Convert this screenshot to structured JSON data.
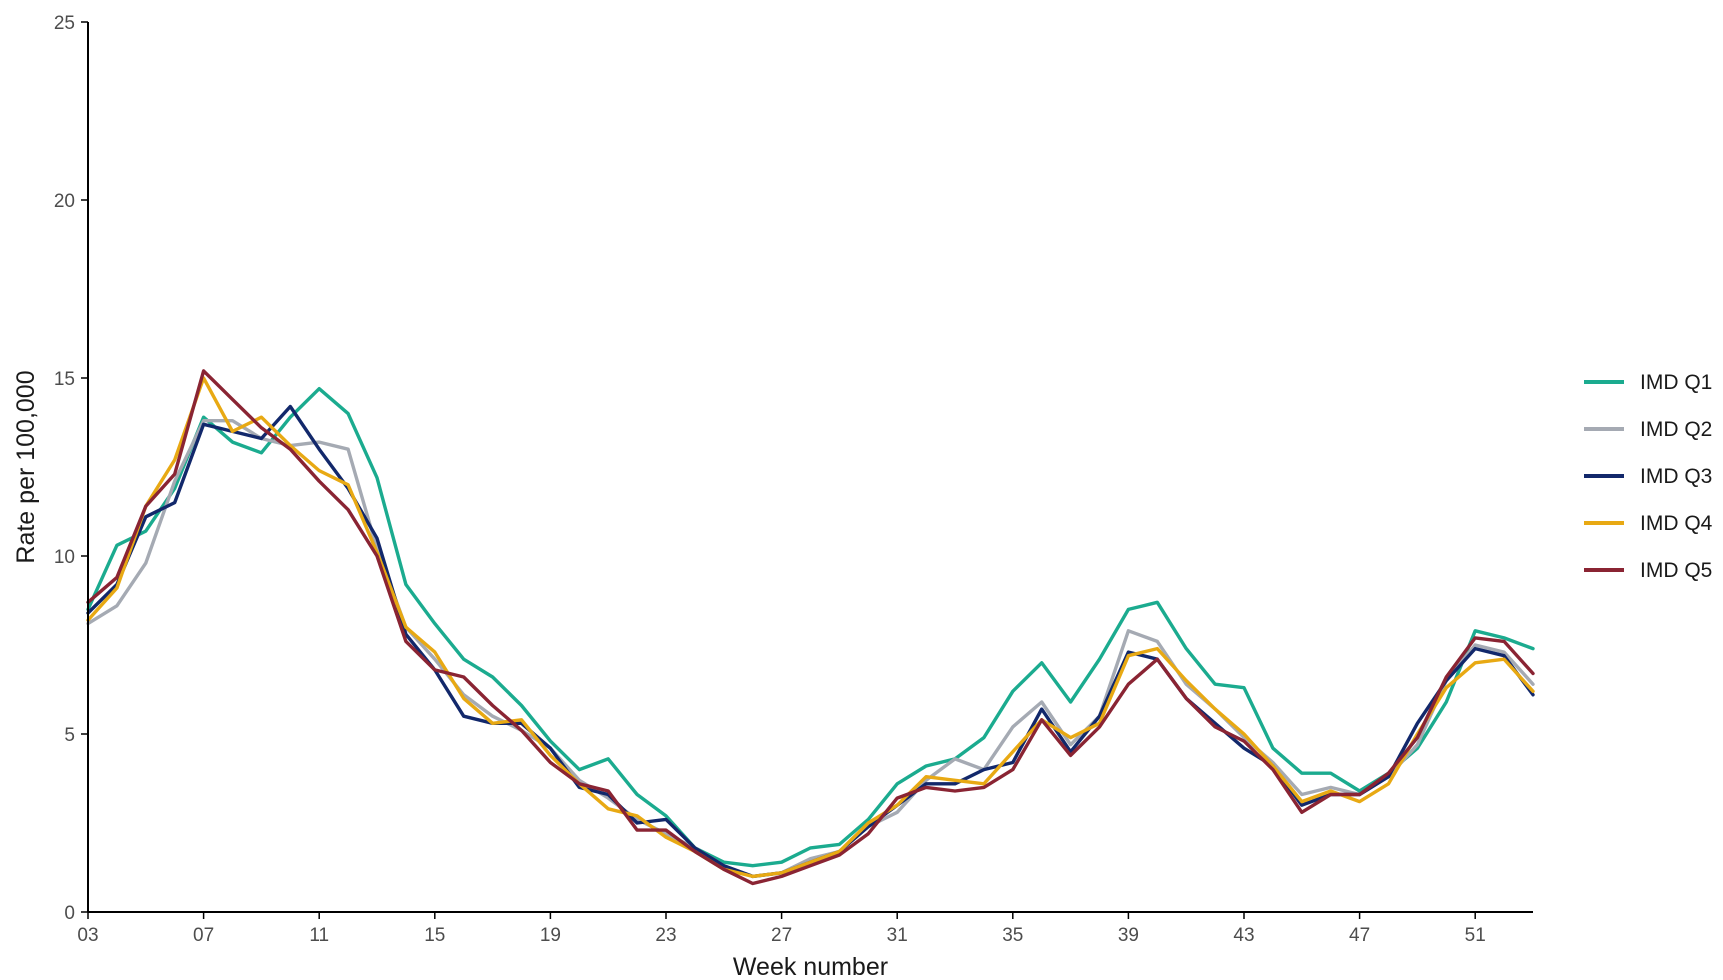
{
  "chart_data": {
    "type": "line",
    "title": "",
    "xlabel": "Week number",
    "ylabel": "Rate per 100,000",
    "xlim": [
      3,
      53
    ],
    "ylim": [
      0,
      25
    ],
    "x_ticks": [
      "03",
      "07",
      "11",
      "15",
      "19",
      "23",
      "27",
      "31",
      "35",
      "39",
      "43",
      "47",
      "51"
    ],
    "x_tick_values": [
      3,
      7,
      11,
      15,
      19,
      23,
      27,
      31,
      35,
      39,
      43,
      47,
      51
    ],
    "y_ticks": [
      "0",
      "5",
      "10",
      "15",
      "20",
      "25"
    ],
    "y_tick_values": [
      0,
      5,
      10,
      15,
      20,
      25
    ],
    "grid": false,
    "legend_position": "right",
    "x": [
      3,
      4,
      5,
      6,
      7,
      8,
      9,
      10,
      11,
      12,
      13,
      14,
      15,
      16,
      17,
      18,
      19,
      20,
      21,
      22,
      23,
      24,
      25,
      26,
      27,
      28,
      29,
      30,
      31,
      32,
      33,
      34,
      35,
      36,
      37,
      38,
      39,
      40,
      41,
      42,
      43,
      44,
      45,
      46,
      47,
      48,
      49,
      50,
      51,
      52,
      53
    ],
    "series": [
      {
        "name": "IMD Q1",
        "color": "#1bab8f",
        "values": [
          8.5,
          10.3,
          10.7,
          11.9,
          13.9,
          13.2,
          12.9,
          13.9,
          14.7,
          14.0,
          12.2,
          9.2,
          8.1,
          7.1,
          6.6,
          5.8,
          4.8,
          4.0,
          4.3,
          3.3,
          2.7,
          1.8,
          1.4,
          1.3,
          1.4,
          1.8,
          1.9,
          2.6,
          3.6,
          4.1,
          4.3,
          4.9,
          6.2,
          7.0,
          5.9,
          7.1,
          8.5,
          8.7,
          7.4,
          6.4,
          6.3,
          4.6,
          3.9,
          3.9,
          3.4,
          3.9,
          4.6,
          5.9,
          7.9,
          7.7,
          7.4
        ]
      },
      {
        "name": "IMD Q2",
        "color": "#a5aab3",
        "values": [
          8.1,
          8.6,
          9.8,
          12.1,
          13.8,
          13.8,
          13.3,
          13.1,
          13.2,
          13.0,
          10.2,
          8.0,
          7.1,
          6.1,
          5.5,
          5.1,
          4.6,
          3.7,
          3.2,
          2.6,
          2.2,
          1.8,
          1.3,
          1.0,
          1.1,
          1.5,
          1.7,
          2.4,
          2.8,
          3.7,
          4.3,
          4.0,
          5.2,
          5.9,
          4.7,
          5.5,
          7.9,
          7.6,
          6.4,
          5.7,
          4.9,
          4.2,
          3.3,
          3.5,
          3.3,
          3.8,
          4.7,
          6.5,
          7.5,
          7.3,
          6.4
        ]
      },
      {
        "name": "IMD Q3",
        "color": "#12286b",
        "values": [
          8.4,
          9.2,
          11.1,
          11.5,
          13.7,
          13.5,
          13.3,
          14.2,
          13.0,
          11.9,
          10.5,
          7.8,
          6.8,
          5.5,
          5.3,
          5.3,
          4.6,
          3.5,
          3.3,
          2.5,
          2.6,
          1.8,
          1.3,
          1.0,
          1.1,
          1.4,
          1.7,
          2.4,
          3.0,
          3.6,
          3.6,
          4.0,
          4.2,
          5.7,
          4.5,
          5.5,
          7.3,
          7.1,
          6.0,
          5.3,
          4.6,
          4.1,
          3.0,
          3.3,
          3.3,
          3.8,
          5.3,
          6.5,
          7.4,
          7.2,
          6.1
        ]
      },
      {
        "name": "IMD Q4",
        "color": "#e8a913",
        "values": [
          8.2,
          9.1,
          11.4,
          12.7,
          15.0,
          13.5,
          13.9,
          13.1,
          12.4,
          12.0,
          10.1,
          8.0,
          7.3,
          6.0,
          5.3,
          5.4,
          4.4,
          3.6,
          2.9,
          2.7,
          2.1,
          1.7,
          1.2,
          1.0,
          1.1,
          1.4,
          1.7,
          2.5,
          3.0,
          3.8,
          3.7,
          3.6,
          4.5,
          5.4,
          4.9,
          5.3,
          7.2,
          7.4,
          6.5,
          5.7,
          5.0,
          4.1,
          3.1,
          3.4,
          3.1,
          3.6,
          5.0,
          6.3,
          7.0,
          7.1,
          6.2
        ]
      },
      {
        "name": "IMD Q5",
        "color": "#8a2433",
        "values": [
          8.7,
          9.4,
          11.4,
          12.3,
          15.2,
          14.4,
          13.6,
          13.0,
          12.1,
          11.3,
          10.0,
          7.6,
          6.8,
          6.6,
          5.8,
          5.1,
          4.2,
          3.6,
          3.4,
          2.3,
          2.3,
          1.7,
          1.2,
          0.8,
          1.0,
          1.3,
          1.6,
          2.2,
          3.2,
          3.5,
          3.4,
          3.5,
          4.0,
          5.4,
          4.4,
          5.2,
          6.4,
          7.1,
          6.0,
          5.2,
          4.8,
          4.0,
          2.8,
          3.3,
          3.3,
          3.9,
          4.9,
          6.6,
          7.7,
          7.6,
          6.7
        ]
      }
    ]
  }
}
